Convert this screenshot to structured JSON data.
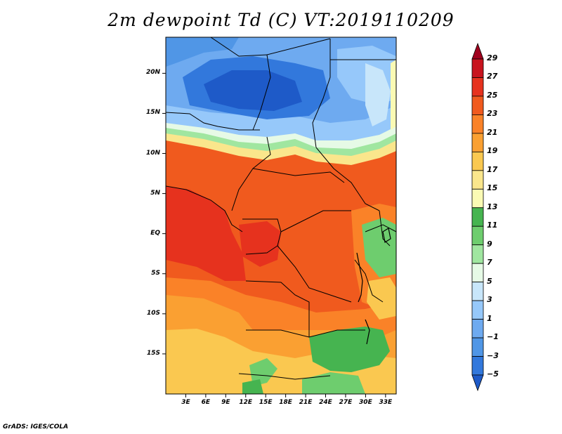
{
  "title": "2m dewpoint Td (C) VT:2019110209",
  "credit": "GrADS: IGES/COLA",
  "map": {
    "lon_range": [
      0,
      34.6
    ],
    "lat_range": [
      -20,
      24.5
    ],
    "y_ticks": [
      {
        "lat": 20,
        "label": "20N"
      },
      {
        "lat": 15,
        "label": "15N"
      },
      {
        "lat": 10,
        "label": "10N"
      },
      {
        "lat": 5,
        "label": "5N"
      },
      {
        "lat": 0,
        "label": "EQ"
      },
      {
        "lat": -5,
        "label": "5S"
      },
      {
        "lat": -10,
        "label": "10S"
      },
      {
        "lat": -15,
        "label": "15S"
      }
    ],
    "x_ticks": [
      {
        "lon": 3,
        "label": "3E"
      },
      {
        "lon": 6,
        "label": "6E"
      },
      {
        "lon": 9,
        "label": "9E"
      },
      {
        "lon": 12,
        "label": "12E"
      },
      {
        "lon": 15,
        "label": "15E"
      },
      {
        "lon": 18,
        "label": "18E"
      },
      {
        "lon": 21,
        "label": "21E"
      },
      {
        "lon": 24,
        "label": "24E"
      },
      {
        "lon": 27,
        "label": "27E"
      },
      {
        "lon": 30,
        "label": "30E"
      },
      {
        "lon": 33,
        "label": "33E"
      }
    ]
  },
  "colorbar": {
    "levels": [
      "29",
      "27",
      "25",
      "23",
      "21",
      "19",
      "17",
      "15",
      "13",
      "11",
      "9",
      "7",
      "5",
      "3",
      "1",
      "−1",
      "−3",
      "−5"
    ],
    "colors": [
      "#a0001e",
      "#c8141e",
      "#e6321e",
      "#f05a1e",
      "#fa8228",
      "#faa032",
      "#fac850",
      "#fae68c",
      "#fafab4",
      "#46b450",
      "#6ecd6e",
      "#a0e6a0",
      "#e6fae6",
      "#c8e6fa",
      "#96c8fa",
      "#6eaaf0",
      "#5096e6",
      "#3278dc",
      "#1e5ac8"
    ]
  }
}
